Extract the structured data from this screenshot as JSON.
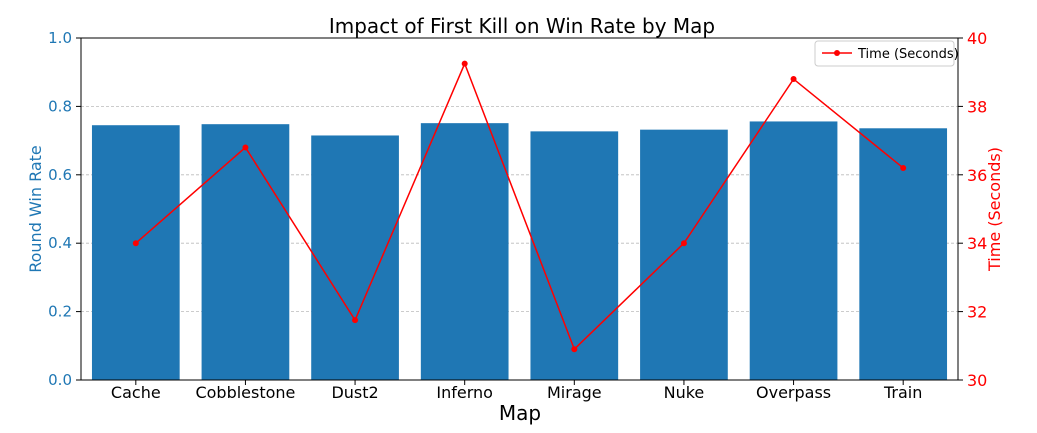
{
  "chart_data": {
    "type": "bar",
    "title": "Impact of First Kill on Win Rate by Map",
    "xlabel": "Map",
    "ylabel": "Round Win Rate",
    "y2label": "Time (Seconds)",
    "categories": [
      "Cache",
      "Cobblestone",
      "Dust2",
      "Inferno",
      "Mirage",
      "Nuke",
      "Overpass",
      "Train"
    ],
    "ylim": [
      0,
      1.0
    ],
    "yticks": [
      "0.0",
      "0.2",
      "0.4",
      "0.6",
      "0.8",
      "1.0"
    ],
    "y2lim": [
      30,
      40
    ],
    "y2ticks": [
      "30",
      "32",
      "34",
      "36",
      "38",
      "40"
    ],
    "grid": true,
    "legend": "top-right",
    "series": [
      {
        "type": "bar",
        "axis": "left",
        "color": "#1f77b4",
        "values": [
          0.745,
          0.748,
          0.715,
          0.751,
          0.727,
          0.732,
          0.756,
          0.736
        ]
      },
      {
        "type": "line",
        "axis": "right",
        "name": "Time (Seconds)",
        "color": "#ff0000",
        "values": [
          34.0,
          36.8,
          31.75,
          39.25,
          30.9,
          34.0,
          38.8,
          36.2
        ]
      }
    ],
    "colors": {
      "left_axis": "#1f77b4",
      "right_axis": "#ff0000",
      "grid": "#bbbbbb"
    }
  }
}
